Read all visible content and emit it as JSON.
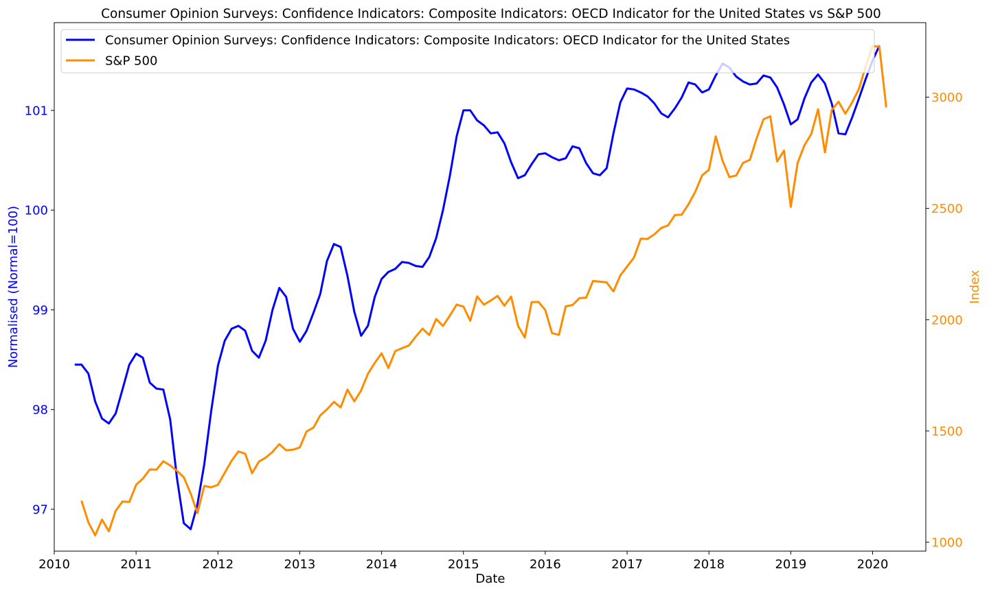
{
  "chart_data": {
    "type": "line",
    "title": "Consumer Opinion Surveys: Confidence Indicators: Composite Indicators: OECD Indicator for the United States vs S&P 500",
    "xlabel": "Date",
    "ylabel_left": "Normalised (Normal=100)",
    "ylabel_right": "Index",
    "xlim": [
      2010.0,
      2020.65
    ],
    "ylim_left": [
      96.58,
      101.88
    ],
    "ylim_right": [
      960,
      3335
    ],
    "x_ticks": [
      "2010",
      "2011",
      "2012",
      "2013",
      "2014",
      "2015",
      "2016",
      "2017",
      "2018",
      "2019",
      "2020"
    ],
    "y_left_ticks": [
      "97",
      "98",
      "99",
      "100",
      "101"
    ],
    "y_right_ticks": [
      "1000",
      "1500",
      "2000",
      "2500",
      "3000"
    ],
    "legend_position": "top-left",
    "colors": {
      "left": "#0000ff",
      "right": "#ff8c00"
    },
    "series": [
      {
        "name": "Consumer Opinion Surveys: Confidence Indicators: Composite Indicators: OECD Indicator for the United States",
        "axis": "left",
        "color": "#0000ff",
        "x": [
          2010.25,
          2010.333,
          2010.417,
          2010.5,
          2010.583,
          2010.667,
          2010.75,
          2010.833,
          2010.917,
          2011.0,
          2011.083,
          2011.167,
          2011.25,
          2011.333,
          2011.417,
          2011.5,
          2011.583,
          2011.667,
          2011.75,
          2011.833,
          2011.917,
          2012.0,
          2012.083,
          2012.167,
          2012.25,
          2012.333,
          2012.417,
          2012.5,
          2012.583,
          2012.667,
          2012.75,
          2012.833,
          2012.917,
          2013.0,
          2013.083,
          2013.167,
          2013.25,
          2013.333,
          2013.417,
          2013.5,
          2013.583,
          2013.667,
          2013.75,
          2013.833,
          2013.917,
          2014.0,
          2014.083,
          2014.167,
          2014.25,
          2014.333,
          2014.417,
          2014.5,
          2014.583,
          2014.667,
          2014.75,
          2014.833,
          2014.917,
          2015.0,
          2015.083,
          2015.167,
          2015.25,
          2015.333,
          2015.417,
          2015.5,
          2015.583,
          2015.667,
          2015.75,
          2015.833,
          2015.917,
          2016.0,
          2016.083,
          2016.167,
          2016.25,
          2016.333,
          2016.417,
          2016.5,
          2016.583,
          2016.667,
          2016.75,
          2016.833,
          2016.917,
          2017.0,
          2017.083,
          2017.167,
          2017.25,
          2017.333,
          2017.417,
          2017.5,
          2017.583,
          2017.667,
          2017.75,
          2017.833,
          2017.917,
          2018.0,
          2018.083,
          2018.167,
          2018.25,
          2018.333,
          2018.417,
          2018.5,
          2018.583,
          2018.667,
          2018.75,
          2018.833,
          2018.917,
          2019.0,
          2019.083,
          2019.167,
          2019.25,
          2019.333,
          2019.417,
          2019.5,
          2019.583,
          2019.667,
          2019.75,
          2019.833,
          2019.917,
          2020.0,
          2020.083
        ],
        "values": [
          98.45,
          98.45,
          98.36,
          98.08,
          97.91,
          97.86,
          97.96,
          98.2,
          98.45,
          98.56,
          98.52,
          98.27,
          98.21,
          98.2,
          97.9,
          97.31,
          96.86,
          96.8,
          97.05,
          97.45,
          97.98,
          98.44,
          98.69,
          98.81,
          98.84,
          98.79,
          98.59,
          98.52,
          98.69,
          99.0,
          99.22,
          99.13,
          98.81,
          98.68,
          98.79,
          98.97,
          99.16,
          99.49,
          99.66,
          99.63,
          99.34,
          98.98,
          98.74,
          98.84,
          99.13,
          99.31,
          99.38,
          99.41,
          99.48,
          99.47,
          99.44,
          99.43,
          99.53,
          99.72,
          100.0,
          100.34,
          100.74,
          101.0,
          101.0,
          100.9,
          100.85,
          100.77,
          100.78,
          100.67,
          100.48,
          100.32,
          100.35,
          100.46,
          100.56,
          100.57,
          100.53,
          100.5,
          100.52,
          100.64,
          100.62,
          100.47,
          100.37,
          100.35,
          100.42,
          100.77,
          101.08,
          101.22,
          101.21,
          101.18,
          101.14,
          101.07,
          100.97,
          100.93,
          101.02,
          101.13,
          101.28,
          101.26,
          101.18,
          101.21,
          101.35,
          101.47,
          101.43,
          101.34,
          101.29,
          101.26,
          101.27,
          101.35,
          101.33,
          101.23,
          101.06,
          100.86,
          100.91,
          101.12,
          101.28,
          101.36,
          101.27,
          101.07,
          100.77,
          100.76,
          100.93,
          101.12,
          101.32,
          101.5,
          101.65
        ]
      },
      {
        "name": "S&P 500",
        "axis": "right",
        "color": "#ff8c00",
        "x": [
          2010.333,
          2010.417,
          2010.5,
          2010.583,
          2010.667,
          2010.75,
          2010.833,
          2010.917,
          2011.0,
          2011.083,
          2011.167,
          2011.25,
          2011.333,
          2011.417,
          2011.5,
          2011.583,
          2011.667,
          2011.75,
          2011.833,
          2011.917,
          2012.0,
          2012.083,
          2012.167,
          2012.25,
          2012.333,
          2012.417,
          2012.5,
          2012.583,
          2012.667,
          2012.75,
          2012.833,
          2012.917,
          2013.0,
          2013.083,
          2013.167,
          2013.25,
          2013.333,
          2013.417,
          2013.5,
          2013.583,
          2013.667,
          2013.75,
          2013.833,
          2013.917,
          2014.0,
          2014.083,
          2014.167,
          2014.25,
          2014.333,
          2014.417,
          2014.5,
          2014.583,
          2014.667,
          2014.75,
          2014.833,
          2014.917,
          2015.0,
          2015.083,
          2015.167,
          2015.25,
          2015.333,
          2015.417,
          2015.5,
          2015.583,
          2015.667,
          2015.75,
          2015.833,
          2015.917,
          2016.0,
          2016.083,
          2016.167,
          2016.25,
          2016.333,
          2016.417,
          2016.5,
          2016.583,
          2016.667,
          2016.75,
          2016.833,
          2016.917,
          2017.0,
          2017.083,
          2017.167,
          2017.25,
          2017.333,
          2017.417,
          2017.5,
          2017.583,
          2017.667,
          2017.75,
          2017.833,
          2017.917,
          2018.0,
          2018.083,
          2018.167,
          2018.25,
          2018.333,
          2018.417,
          2018.5,
          2018.583,
          2018.667,
          2018.75,
          2018.833,
          2018.917,
          2019.0,
          2019.083,
          2019.167,
          2019.25,
          2019.333,
          2019.417,
          2019.5,
          2019.583,
          2019.667,
          2019.75,
          2019.833,
          2019.917,
          2020.0,
          2020.083,
          2020.167
        ],
        "values": [
          1187,
          1089,
          1031,
          1102,
          1049,
          1141,
          1183,
          1181,
          1258,
          1286,
          1327,
          1326,
          1364,
          1345,
          1321,
          1292,
          1219,
          1131,
          1253,
          1247,
          1258,
          1312,
          1366,
          1408,
          1398,
          1310,
          1362,
          1380,
          1406,
          1441,
          1413,
          1416,
          1426,
          1498,
          1515,
          1570,
          1597,
          1631,
          1606,
          1686,
          1633,
          1682,
          1757,
          1806,
          1849,
          1783,
          1859,
          1872,
          1884,
          1924,
          1960,
          1931,
          2003,
          1972,
          2018,
          2068,
          2059,
          1995,
          2105,
          2068,
          2086,
          2107,
          2063,
          2104,
          1972,
          1920,
          2079,
          2080,
          2044,
          1940,
          1932,
          2060,
          2066,
          2097,
          2099,
          2174,
          2171,
          2168,
          2127,
          2199,
          2239,
          2279,
          2364,
          2363,
          2384,
          2412,
          2424,
          2470,
          2472,
          2519,
          2575,
          2648,
          2674,
          2824,
          2714,
          2641,
          2648,
          2705,
          2718,
          2816,
          2901,
          2914,
          2711,
          2760,
          2507,
          2704,
          2784,
          2834,
          2946,
          2752,
          2942,
          2980,
          2926,
          2977,
          3038,
          3141,
          3230,
          3226,
          2954
        ]
      }
    ]
  }
}
